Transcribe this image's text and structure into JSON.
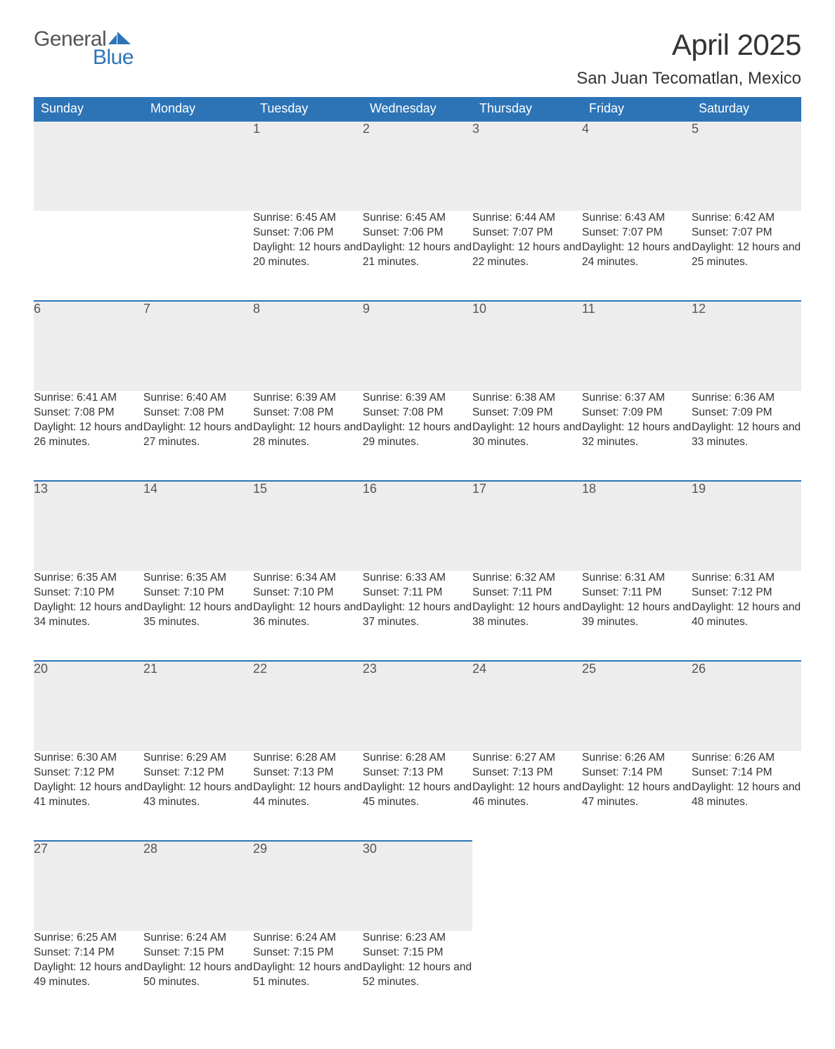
{
  "brand": {
    "word1": "General",
    "word2": "Blue",
    "flag_color": "#2d74b7"
  },
  "title": "April 2025",
  "location": "San Juan Tecomatlan, Mexico",
  "colors": {
    "header_bg": "#2d74b7",
    "header_text": "#ffffff",
    "daynum_bg": "#ededed",
    "daynum_border": "#2d74b7",
    "body_text": "#333333",
    "page_bg": "#ffffff"
  },
  "day_headers": [
    "Sunday",
    "Monday",
    "Tuesday",
    "Wednesday",
    "Thursday",
    "Friday",
    "Saturday"
  ],
  "weeks": [
    [
      null,
      null,
      {
        "n": "1",
        "sunrise": "6:45 AM",
        "sunset": "7:06 PM",
        "daylight": "12 hours and 20 minutes."
      },
      {
        "n": "2",
        "sunrise": "6:45 AM",
        "sunset": "7:06 PM",
        "daylight": "12 hours and 21 minutes."
      },
      {
        "n": "3",
        "sunrise": "6:44 AM",
        "sunset": "7:07 PM",
        "daylight": "12 hours and 22 minutes."
      },
      {
        "n": "4",
        "sunrise": "6:43 AM",
        "sunset": "7:07 PM",
        "daylight": "12 hours and 24 minutes."
      },
      {
        "n": "5",
        "sunrise": "6:42 AM",
        "sunset": "7:07 PM",
        "daylight": "12 hours and 25 minutes."
      }
    ],
    [
      {
        "n": "6",
        "sunrise": "6:41 AM",
        "sunset": "7:08 PM",
        "daylight": "12 hours and 26 minutes."
      },
      {
        "n": "7",
        "sunrise": "6:40 AM",
        "sunset": "7:08 PM",
        "daylight": "12 hours and 27 minutes."
      },
      {
        "n": "8",
        "sunrise": "6:39 AM",
        "sunset": "7:08 PM",
        "daylight": "12 hours and 28 minutes."
      },
      {
        "n": "9",
        "sunrise": "6:39 AM",
        "sunset": "7:08 PM",
        "daylight": "12 hours and 29 minutes."
      },
      {
        "n": "10",
        "sunrise": "6:38 AM",
        "sunset": "7:09 PM",
        "daylight": "12 hours and 30 minutes."
      },
      {
        "n": "11",
        "sunrise": "6:37 AM",
        "sunset": "7:09 PM",
        "daylight": "12 hours and 32 minutes."
      },
      {
        "n": "12",
        "sunrise": "6:36 AM",
        "sunset": "7:09 PM",
        "daylight": "12 hours and 33 minutes."
      }
    ],
    [
      {
        "n": "13",
        "sunrise": "6:35 AM",
        "sunset": "7:10 PM",
        "daylight": "12 hours and 34 minutes."
      },
      {
        "n": "14",
        "sunrise": "6:35 AM",
        "sunset": "7:10 PM",
        "daylight": "12 hours and 35 minutes."
      },
      {
        "n": "15",
        "sunrise": "6:34 AM",
        "sunset": "7:10 PM",
        "daylight": "12 hours and 36 minutes."
      },
      {
        "n": "16",
        "sunrise": "6:33 AM",
        "sunset": "7:11 PM",
        "daylight": "12 hours and 37 minutes."
      },
      {
        "n": "17",
        "sunrise": "6:32 AM",
        "sunset": "7:11 PM",
        "daylight": "12 hours and 38 minutes."
      },
      {
        "n": "18",
        "sunrise": "6:31 AM",
        "sunset": "7:11 PM",
        "daylight": "12 hours and 39 minutes."
      },
      {
        "n": "19",
        "sunrise": "6:31 AM",
        "sunset": "7:12 PM",
        "daylight": "12 hours and 40 minutes."
      }
    ],
    [
      {
        "n": "20",
        "sunrise": "6:30 AM",
        "sunset": "7:12 PM",
        "daylight": "12 hours and 41 minutes."
      },
      {
        "n": "21",
        "sunrise": "6:29 AM",
        "sunset": "7:12 PM",
        "daylight": "12 hours and 43 minutes."
      },
      {
        "n": "22",
        "sunrise": "6:28 AM",
        "sunset": "7:13 PM",
        "daylight": "12 hours and 44 minutes."
      },
      {
        "n": "23",
        "sunrise": "6:28 AM",
        "sunset": "7:13 PM",
        "daylight": "12 hours and 45 minutes."
      },
      {
        "n": "24",
        "sunrise": "6:27 AM",
        "sunset": "7:13 PM",
        "daylight": "12 hours and 46 minutes."
      },
      {
        "n": "25",
        "sunrise": "6:26 AM",
        "sunset": "7:14 PM",
        "daylight": "12 hours and 47 minutes."
      },
      {
        "n": "26",
        "sunrise": "6:26 AM",
        "sunset": "7:14 PM",
        "daylight": "12 hours and 48 minutes."
      }
    ],
    [
      {
        "n": "27",
        "sunrise": "6:25 AM",
        "sunset": "7:14 PM",
        "daylight": "12 hours and 49 minutes."
      },
      {
        "n": "28",
        "sunrise": "6:24 AM",
        "sunset": "7:15 PM",
        "daylight": "12 hours and 50 minutes."
      },
      {
        "n": "29",
        "sunrise": "6:24 AM",
        "sunset": "7:15 PM",
        "daylight": "12 hours and 51 minutes."
      },
      {
        "n": "30",
        "sunrise": "6:23 AM",
        "sunset": "7:15 PM",
        "daylight": "12 hours and 52 minutes."
      },
      null,
      null,
      null
    ]
  ],
  "labels": {
    "sunrise": "Sunrise: ",
    "sunset": "Sunset: ",
    "daylight": "Daylight: "
  }
}
